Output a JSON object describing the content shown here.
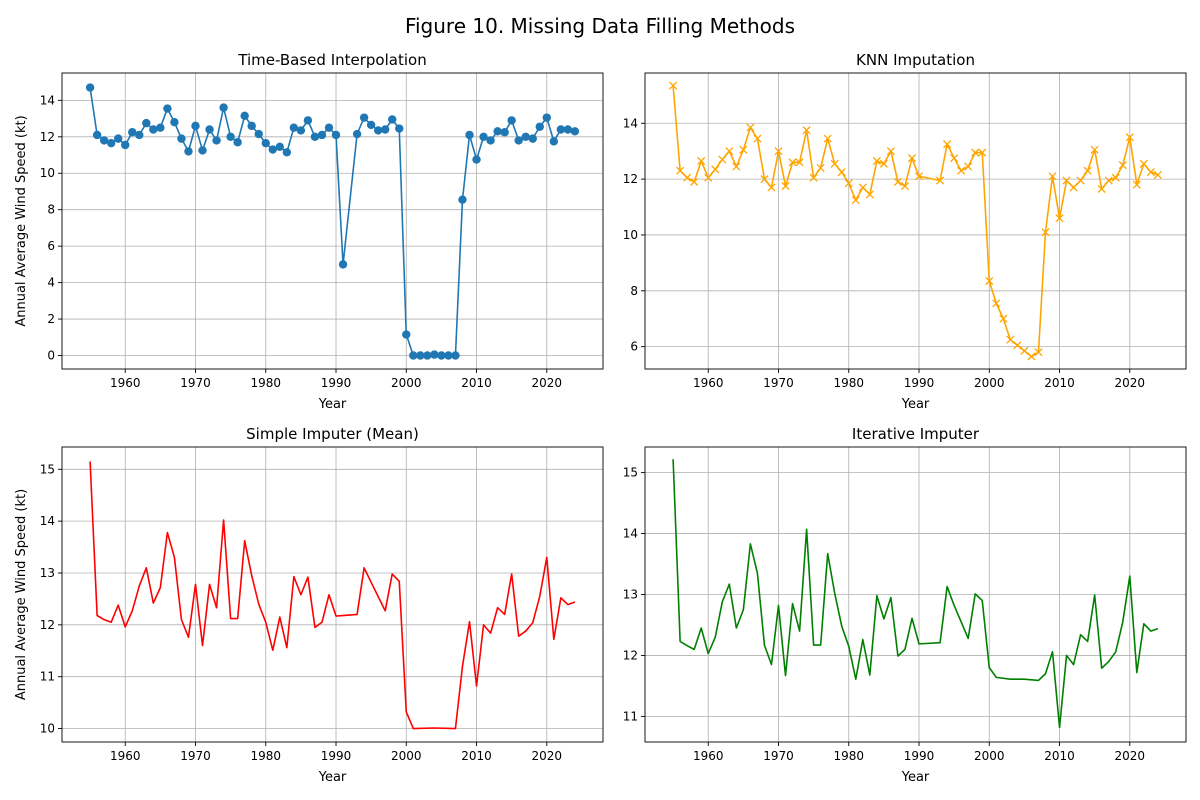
{
  "figure_title": "Figure 10. Missing Data Filling Methods",
  "chart_data": [
    {
      "type": "line",
      "title": "Time-Based Interpolation",
      "xlabel": "Year",
      "ylabel": "Annual Average Wind Speed (kt)",
      "color": "#1f77b4",
      "marker": "circle",
      "xlim": [
        1951,
        2028
      ],
      "ylim": [
        -0.74,
        15.5
      ],
      "xticks": [
        1960,
        1970,
        1980,
        1990,
        2000,
        2010,
        2020
      ],
      "yticks": [
        0,
        2,
        4,
        6,
        8,
        10,
        12,
        14
      ],
      "grid": true,
      "series": [
        {
          "x": [
            1955,
            1956,
            1957,
            1958,
            1959,
            1960,
            1961,
            1962,
            1963,
            1964,
            1965,
            1966,
            1967,
            1968,
            1969,
            1970,
            1971,
            1972,
            1973,
            1974,
            1975,
            1976,
            1977,
            1978,
            1979,
            1980,
            1981,
            1982,
            1983,
            1984,
            1985,
            1986,
            1987,
            1988,
            1989,
            1990,
            1991,
            1993,
            1994,
            1995,
            1996,
            1997,
            1998,
            1999,
            2000,
            2001,
            2002,
            2003,
            2004,
            2005,
            2006,
            2007,
            2008,
            2009,
            2010,
            2011,
            2012,
            2013,
            2014,
            2015,
            2016,
            2017,
            2018,
            2019,
            2020,
            2021,
            2022,
            2023,
            2024
          ],
          "y": [
            14.7,
            12.1,
            11.8,
            11.65,
            11.9,
            11.55,
            12.25,
            12.1,
            12.75,
            12.4,
            12.5,
            13.55,
            12.8,
            11.9,
            11.2,
            12.6,
            11.25,
            12.4,
            11.8,
            13.6,
            12.0,
            11.7,
            13.15,
            12.6,
            12.15,
            11.65,
            11.3,
            11.45,
            11.15,
            12.5,
            12.35,
            12.9,
            12.0,
            12.1,
            12.5,
            12.1,
            5.0,
            12.15,
            13.05,
            12.65,
            12.35,
            12.4,
            12.95,
            12.45,
            1.15,
            0.0,
            0.0,
            0.0,
            0.05,
            0.0,
            0.0,
            0.0,
            8.55,
            12.1,
            10.75,
            12.0,
            11.8,
            12.3,
            12.25,
            12.9,
            11.8,
            12.0,
            11.9,
            12.55,
            13.05,
            11.75,
            12.4,
            12.4,
            12.3
          ]
        }
      ]
    },
    {
      "type": "line",
      "title": "KNN Imputation",
      "xlabel": "Year",
      "ylabel": "",
      "color": "#ffa500",
      "marker": "x",
      "xlim": [
        1951,
        2028
      ],
      "ylim": [
        5.2,
        15.8
      ],
      "xticks": [
        1960,
        1970,
        1980,
        1990,
        2000,
        2010,
        2020
      ],
      "yticks": [
        6,
        8,
        10,
        12,
        14
      ],
      "grid": true,
      "series": [
        {
          "x": [
            1955,
            1956,
            1957,
            1958,
            1959,
            1960,
            1961,
            1962,
            1963,
            1964,
            1965,
            1966,
            1967,
            1968,
            1969,
            1970,
            1971,
            1972,
            1973,
            1974,
            1975,
            1976,
            1977,
            1978,
            1979,
            1980,
            1981,
            1982,
            1983,
            1984,
            1985,
            1986,
            1987,
            1988,
            1989,
            1990,
            1993,
            1994,
            1995,
            1996,
            1997,
            1998,
            1999,
            2000,
            2001,
            2002,
            2003,
            2004,
            2005,
            2006,
            2007,
            2008,
            2009,
            2010,
            2011,
            2012,
            2013,
            2014,
            2015,
            2016,
            2017,
            2018,
            2019,
            2020,
            2021,
            2022,
            2023,
            2024
          ],
          "y": [
            15.35,
            12.3,
            12.05,
            11.9,
            12.65,
            12.05,
            12.35,
            12.7,
            13.0,
            12.45,
            13.05,
            13.85,
            13.45,
            12.0,
            11.7,
            13.0,
            11.75,
            12.6,
            12.6,
            13.75,
            12.05,
            12.4,
            13.45,
            12.55,
            12.25,
            11.85,
            11.25,
            11.7,
            11.45,
            12.65,
            12.55,
            13.0,
            11.9,
            11.75,
            12.75,
            12.1,
            11.95,
            13.25,
            12.75,
            12.3,
            12.45,
            12.95,
            12.95,
            8.35,
            7.55,
            7.0,
            6.25,
            6.05,
            5.85,
            5.65,
            5.8,
            10.1,
            12.1,
            10.6,
            11.95,
            11.7,
            11.95,
            12.3,
            13.05,
            11.65,
            11.95,
            12.05,
            12.5,
            13.5,
            11.8,
            12.55,
            12.25,
            12.15
          ]
        }
      ]
    },
    {
      "type": "line",
      "title": "Simple Imputer (Mean)",
      "xlabel": "Year",
      "ylabel": "Annual Average Wind Speed (kt)",
      "color": "#ff0000",
      "marker": "none",
      "xlim": [
        1951,
        2028
      ],
      "ylim": [
        9.74,
        15.43
      ],
      "xticks": [
        1960,
        1970,
        1980,
        1990,
        2000,
        2010,
        2020
      ],
      "yticks": [
        10,
        11,
        12,
        13,
        14,
        15
      ],
      "grid": true,
      "series": [
        {
          "x": [
            1955,
            1956,
            1957,
            1958,
            1959,
            1960,
            1961,
            1962,
            1963,
            1964,
            1965,
            1966,
            1967,
            1968,
            1969,
            1970,
            1971,
            1972,
            1973,
            1974,
            1975,
            1976,
            1977,
            1978,
            1979,
            1980,
            1981,
            1982,
            1983,
            1984,
            1985,
            1986,
            1987,
            1988,
            1989,
            1990,
            1993,
            1994,
            1995,
            1997,
            1998,
            1999,
            2000,
            2001,
            2004,
            2007,
            2008,
            2009,
            2010,
            2011,
            2012,
            2013,
            2014,
            2015,
            2016,
            2017,
            2018,
            2019,
            2020,
            2021,
            2022,
            2023,
            2024
          ],
          "y": [
            15.15,
            12.18,
            12.1,
            12.05,
            12.38,
            11.96,
            12.27,
            12.75,
            13.1,
            12.42,
            12.72,
            13.78,
            13.3,
            12.1,
            11.76,
            12.78,
            11.6,
            12.78,
            12.33,
            14.02,
            12.12,
            12.12,
            13.62,
            12.95,
            12.4,
            12.05,
            11.51,
            12.15,
            11.56,
            12.93,
            12.58,
            12.92,
            11.95,
            12.05,
            12.58,
            12.17,
            12.2,
            13.1,
            12.82,
            12.27,
            12.98,
            12.84,
            10.32,
            10.0,
            10.01,
            10.0,
            11.2,
            12.06,
            10.82,
            12.0,
            11.84,
            12.33,
            12.2,
            12.98,
            11.78,
            11.88,
            12.04,
            12.55,
            13.3,
            11.72,
            12.52,
            12.39,
            12.44
          ]
        }
      ]
    },
    {
      "type": "line",
      "title": "Iterative Imputer",
      "xlabel": "Year",
      "ylabel": "",
      "color": "#008000",
      "marker": "none",
      "xlim": [
        1951,
        2028
      ],
      "ylim": [
        10.58,
        15.42
      ],
      "xticks": [
        1960,
        1970,
        1980,
        1990,
        2000,
        2010,
        2020
      ],
      "yticks": [
        11,
        12,
        13,
        14,
        15
      ],
      "grid": true,
      "series": [
        {
          "x": [
            1955,
            1956,
            1957,
            1958,
            1959,
            1960,
            1961,
            1962,
            1963,
            1964,
            1965,
            1966,
            1967,
            1968,
            1969,
            1970,
            1971,
            1972,
            1973,
            1974,
            1975,
            1976,
            1977,
            1978,
            1979,
            1980,
            1981,
            1982,
            1983,
            1984,
            1985,
            1986,
            1987,
            1988,
            1989,
            1990,
            1993,
            1994,
            1995,
            1997,
            1998,
            1999,
            2000,
            2001,
            2003,
            2005,
            2007,
            2008,
            2009,
            2010,
            2011,
            2012,
            2013,
            2014,
            2015,
            2016,
            2017,
            2018,
            2019,
            2020,
            2021,
            2022,
            2023,
            2024
          ],
          "y": [
            15.22,
            12.23,
            12.16,
            12.1,
            12.45,
            12.03,
            12.3,
            12.88,
            13.17,
            12.45,
            12.75,
            13.83,
            13.35,
            12.17,
            11.85,
            12.82,
            11.67,
            12.85,
            12.4,
            14.07,
            12.17,
            12.17,
            13.67,
            13.02,
            12.48,
            12.15,
            11.61,
            12.26,
            11.68,
            12.98,
            12.6,
            12.95,
            11.99,
            12.1,
            12.61,
            12.19,
            12.21,
            13.13,
            12.82,
            12.28,
            13.01,
            12.9,
            11.8,
            11.64,
            11.61,
            11.61,
            11.59,
            11.7,
            12.06,
            10.82,
            12.0,
            11.85,
            12.34,
            12.23,
            12.99,
            11.79,
            11.9,
            12.06,
            12.55,
            13.3,
            11.72,
            12.52,
            12.4,
            12.44
          ]
        }
      ]
    }
  ]
}
